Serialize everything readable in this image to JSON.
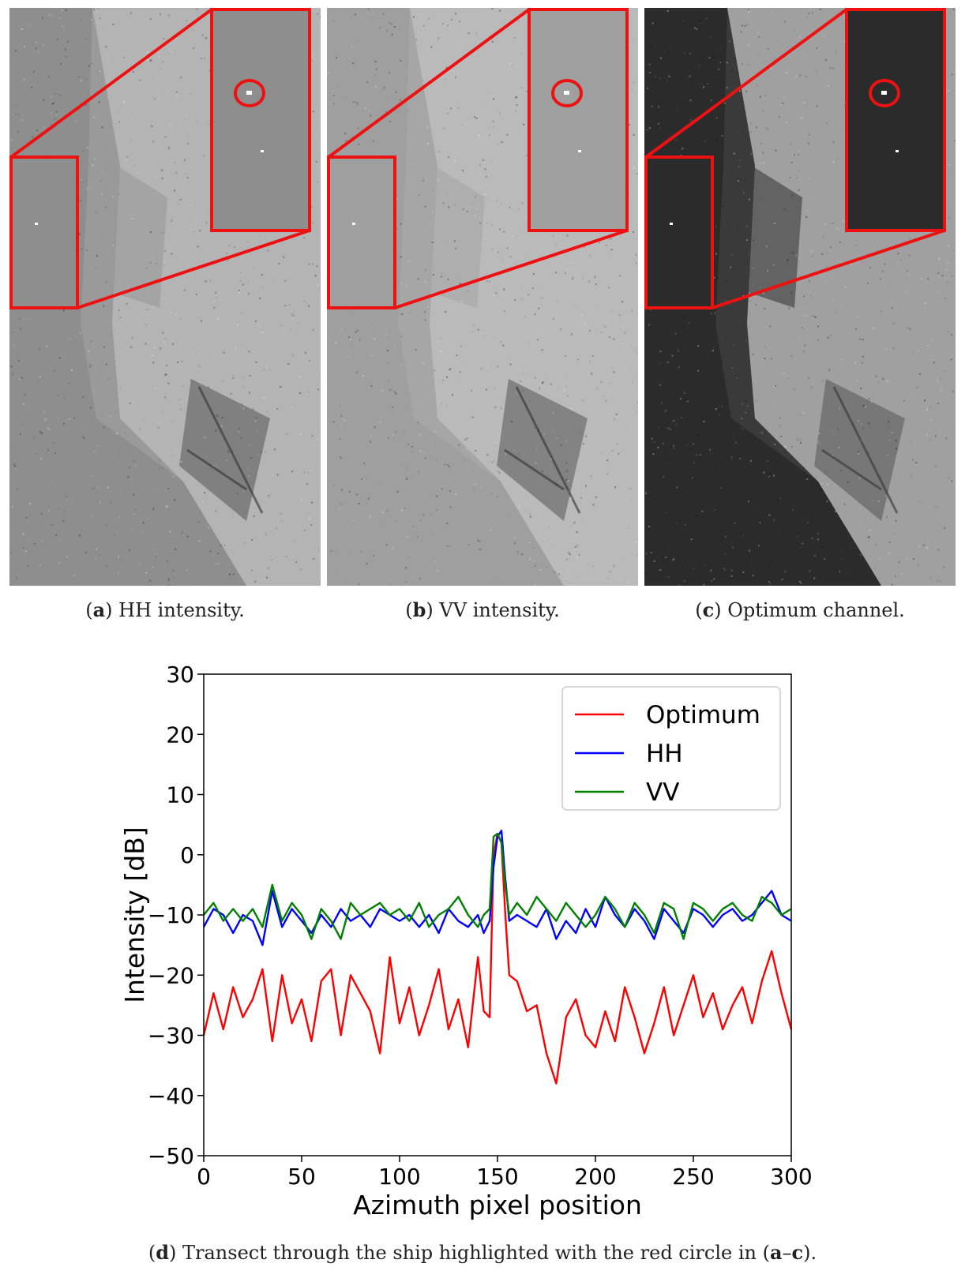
{
  "panels": [
    {
      "id": "a",
      "letter": "a",
      "label": " HH intensity.",
      "tone": "#9a9a9a",
      "sea": "#8e8e8e",
      "land": "#b4b4b4"
    },
    {
      "id": "b",
      "letter": "b",
      "label": " VV intensity.",
      "tone": "#a6a6a6",
      "sea": "#9f9f9f",
      "land": "#bababa"
    },
    {
      "id": "c",
      "letter": "c",
      "label": " Optimum channel.",
      "tone": "#3a3a3a",
      "sea": "#2b2b2b",
      "land": "#a0a0a0"
    }
  ],
  "colors": {
    "highlight": "#ee1111"
  },
  "caption_d": {
    "letter": "d",
    "text_before": " Transect through the ship highlighted with the red circle in (",
    "range": "a",
    "dash": "–",
    "range_end": "c",
    "text_after": ")."
  },
  "chart_data": {
    "type": "line",
    "xlabel": "Azimuth pixel position",
    "ylabel": "Intensity [dB]",
    "xlim": [
      0,
      300
    ],
    "ylim": [
      -50,
      30
    ],
    "xticks": [
      0,
      50,
      100,
      150,
      200,
      250,
      300
    ],
    "yticks": [
      30,
      20,
      10,
      0,
      -10,
      -20,
      -30,
      -40,
      -50
    ],
    "ytick_labels": [
      "30",
      "20",
      "10",
      "0",
      "−10",
      "−20",
      "−30",
      "−40",
      "−50"
    ],
    "legend_position": "top-right",
    "grid": false,
    "series": [
      {
        "name": "Optimum",
        "color": "#ff0000",
        "x": [
          0,
          5,
          10,
          15,
          20,
          25,
          30,
          35,
          40,
          45,
          50,
          55,
          60,
          65,
          70,
          75,
          80,
          85,
          90,
          95,
          100,
          105,
          110,
          115,
          120,
          125,
          130,
          135,
          140,
          143,
          146,
          148,
          150,
          152,
          154,
          156,
          160,
          165,
          170,
          175,
          180,
          185,
          190,
          195,
          200,
          205,
          210,
          215,
          220,
          225,
          230,
          235,
          240,
          245,
          250,
          255,
          260,
          265,
          270,
          275,
          280,
          285,
          290,
          295,
          300
        ],
        "y": [
          -30,
          -23,
          -29,
          -22,
          -27,
          -24,
          -19,
          -31,
          -20,
          -28,
          -24,
          -31,
          -21,
          -19,
          -30,
          -20,
          -23,
          -26,
          -33,
          -17,
          -28,
          -22,
          -30,
          -25,
          -19,
          -29,
          -24,
          -32,
          -17,
          -26,
          -27,
          0,
          3.5,
          2,
          -10,
          -20,
          -21,
          -26,
          -25,
          -33,
          -38,
          -27,
          -24,
          -30,
          -32,
          -26,
          -31,
          -22,
          -27,
          -33,
          -28,
          -22,
          -30,
          -25,
          -20,
          -27,
          -23,
          -29,
          -25,
          -22,
          -28,
          -21,
          -16,
          -23,
          -29
        ]
      },
      {
        "name": "HH",
        "color": "#0000ff",
        "x": [
          0,
          5,
          10,
          15,
          20,
          25,
          30,
          35,
          40,
          45,
          50,
          55,
          60,
          65,
          70,
          75,
          80,
          85,
          90,
          95,
          100,
          105,
          110,
          115,
          120,
          125,
          130,
          135,
          140,
          143,
          146,
          148,
          150,
          152,
          154,
          156,
          160,
          165,
          170,
          175,
          180,
          185,
          190,
          195,
          200,
          205,
          210,
          215,
          220,
          225,
          230,
          235,
          240,
          245,
          250,
          255,
          260,
          265,
          270,
          275,
          280,
          285,
          290,
          295,
          300
        ],
        "y": [
          -12,
          -9,
          -10,
          -13,
          -10,
          -11,
          -15,
          -6,
          -12,
          -9,
          -11,
          -13,
          -10,
          -12,
          -9,
          -11,
          -10,
          -12,
          -9,
          -10,
          -11,
          -10,
          -12,
          -10,
          -13,
          -9,
          -11,
          -12,
          -10,
          -13,
          -11,
          -2,
          3,
          4,
          -4,
          -11,
          -10,
          -11,
          -12,
          -9,
          -14,
          -11,
          -13,
          -9,
          -12,
          -7,
          -10,
          -12,
          -9,
          -11,
          -14,
          -9,
          -11,
          -13,
          -9,
          -10,
          -12,
          -10,
          -9,
          -11,
          -10,
          -8,
          -6,
          -10,
          -11
        ]
      },
      {
        "name": "VV",
        "color": "#008000",
        "x": [
          0,
          5,
          10,
          15,
          20,
          25,
          30,
          35,
          40,
          45,
          50,
          55,
          60,
          65,
          70,
          75,
          80,
          85,
          90,
          95,
          100,
          105,
          110,
          115,
          120,
          125,
          130,
          135,
          140,
          143,
          146,
          148,
          150,
          152,
          154,
          156,
          160,
          165,
          170,
          175,
          180,
          185,
          190,
          195,
          200,
          205,
          210,
          215,
          220,
          225,
          230,
          235,
          240,
          245,
          250,
          255,
          260,
          265,
          270,
          275,
          280,
          285,
          290,
          295,
          300
        ],
        "y": [
          -10,
          -8,
          -11,
          -9,
          -11,
          -9,
          -12,
          -5,
          -11,
          -8,
          -10,
          -14,
          -9,
          -11,
          -14,
          -8,
          -10,
          -9,
          -8,
          -10,
          -9,
          -11,
          -8,
          -12,
          -10,
          -9,
          -7,
          -10,
          -12,
          -10,
          -9,
          3,
          3.5,
          2,
          -5,
          -10,
          -8,
          -10,
          -7,
          -9,
          -11,
          -8,
          -10,
          -12,
          -10,
          -7,
          -9,
          -12,
          -8,
          -10,
          -13,
          -8,
          -9,
          -14,
          -8,
          -9,
          -11,
          -9,
          -8,
          -10,
          -11,
          -7,
          -8,
          -10,
          -9
        ]
      }
    ]
  }
}
